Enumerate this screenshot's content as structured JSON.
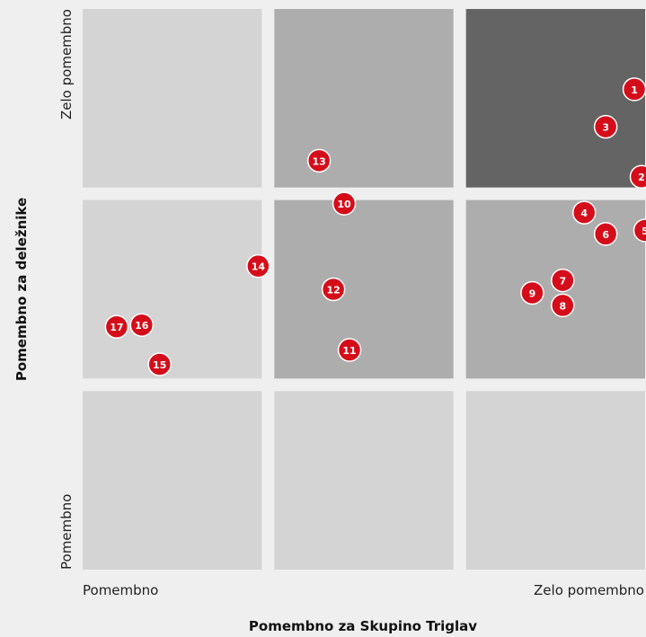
{
  "chart_data": {
    "type": "scatter",
    "title": "",
    "xlabel": "Pomembno za Skupino Triglav",
    "ylabel": "Pomembno za deležnike",
    "x_ticks": [
      "Pomembno",
      "Zelo pomembno"
    ],
    "y_ticks": [
      "Pomembno",
      "Zelo pomembno"
    ],
    "xlim": [
      0,
      3
    ],
    "ylim": [
      0,
      3
    ],
    "grid": "3x3",
    "colors": {
      "background": "#efefef",
      "cell_light": "#d4d4d4",
      "cell_medium": "#adadad",
      "cell_dark": "#646464",
      "point": "#d50d1a",
      "point_stroke": "#ffffff"
    },
    "cells": [
      {
        "col": 0,
        "row": 0,
        "shade": "light"
      },
      {
        "col": 1,
        "row": 0,
        "shade": "light"
      },
      {
        "col": 2,
        "row": 0,
        "shade": "light"
      },
      {
        "col": 0,
        "row": 1,
        "shade": "light"
      },
      {
        "col": 1,
        "row": 1,
        "shade": "medium"
      },
      {
        "col": 2,
        "row": 1,
        "shade": "medium"
      },
      {
        "col": 0,
        "row": 2,
        "shade": "light"
      },
      {
        "col": 1,
        "row": 2,
        "shade": "medium"
      },
      {
        "col": 2,
        "row": 2,
        "shade": "dark"
      }
    ],
    "points": [
      {
        "label": "1",
        "x": 2.94,
        "y": 2.55
      },
      {
        "label": "2",
        "x": 2.98,
        "y": 2.06
      },
      {
        "label": "3",
        "x": 2.78,
        "y": 2.34
      },
      {
        "label": "4",
        "x": 2.66,
        "y": 1.93
      },
      {
        "label": "5",
        "x": 3.0,
        "y": 1.83
      },
      {
        "label": "6",
        "x": 2.78,
        "y": 1.81
      },
      {
        "label": "7",
        "x": 2.54,
        "y": 1.55
      },
      {
        "label": "8",
        "x": 2.54,
        "y": 1.41
      },
      {
        "label": "9",
        "x": 2.37,
        "y": 1.48
      },
      {
        "label": "10",
        "x": 1.39,
        "y": 1.98
      },
      {
        "label": "11",
        "x": 1.42,
        "y": 1.16
      },
      {
        "label": "12",
        "x": 1.33,
        "y": 1.5
      },
      {
        "label": "13",
        "x": 1.25,
        "y": 2.15
      },
      {
        "label": "14",
        "x": 0.98,
        "y": 1.63
      },
      {
        "label": "15",
        "x": 0.43,
        "y": 1.08
      },
      {
        "label": "16",
        "x": 0.33,
        "y": 1.3
      },
      {
        "label": "17",
        "x": 0.19,
        "y": 1.29
      }
    ]
  }
}
